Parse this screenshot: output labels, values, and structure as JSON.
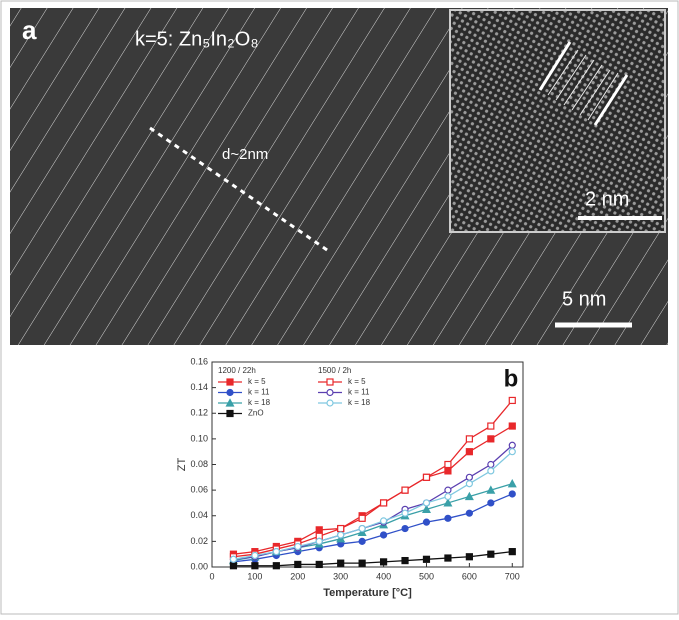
{
  "micrograph": {
    "panel_label": "a",
    "formula": "k=5: Zn₅In₂O₈",
    "spacing_label": "d~2nm",
    "inset_scale": "2 nm",
    "main_scale": "5 nm"
  },
  "chart_data": {
    "type": "line",
    "panel_label": "b",
    "x_label": "Temperature [°C]",
    "y_label": "ZT",
    "legend_titles": [
      "1200 / 22h",
      "1500 / 2h"
    ],
    "x": [
      50,
      100,
      150,
      200,
      250,
      300,
      350,
      400,
      450,
      500,
      550,
      600,
      650,
      700
    ],
    "series": [
      {
        "name": "k = 5",
        "color": "#e8282b",
        "marker": "square",
        "filled": true,
        "values": [
          0.01,
          0.012,
          0.016,
          0.02,
          0.029,
          0.03,
          0.04,
          0.05,
          0.06,
          0.07,
          0.075,
          0.09,
          0.1,
          0.11
        ]
      },
      {
        "name": "k = 11",
        "color": "#3050c8",
        "marker": "circle",
        "filled": true,
        "values": [
          0.004,
          0.006,
          0.009,
          0.012,
          0.015,
          0.018,
          0.02,
          0.025,
          0.03,
          0.035,
          0.038,
          0.042,
          0.05,
          0.057
        ]
      },
      {
        "name": "k = 18",
        "color": "#3aa0a8",
        "marker": "triangle",
        "filled": true,
        "values": [
          0.005,
          0.008,
          0.012,
          0.015,
          0.018,
          0.022,
          0.027,
          0.033,
          0.04,
          0.045,
          0.05,
          0.055,
          0.06,
          0.065
        ]
      },
      {
        "name": "ZnO",
        "color": "#111111",
        "marker": "square",
        "filled": true,
        "values": [
          0.001,
          0.001,
          0.001,
          0.002,
          0.002,
          0.003,
          0.003,
          0.004,
          0.005,
          0.006,
          0.007,
          0.008,
          0.01,
          0.012
        ]
      },
      {
        "name": "k = 5",
        "color": "#e8282b",
        "marker": "square",
        "filled": false,
        "values": [
          0.008,
          0.01,
          0.014,
          0.018,
          0.024,
          0.03,
          0.038,
          0.05,
          0.06,
          0.07,
          0.08,
          0.1,
          0.11,
          0.13
        ]
      },
      {
        "name": "k = 11",
        "color": "#5a3fb0",
        "marker": "circle",
        "filled": false,
        "values": [
          0.006,
          0.008,
          0.012,
          0.015,
          0.02,
          0.025,
          0.03,
          0.035,
          0.045,
          0.05,
          0.06,
          0.07,
          0.08,
          0.095
        ]
      },
      {
        "name": "k = 18",
        "color": "#7fc8e0",
        "marker": "circle",
        "filled": false,
        "values": [
          0.006,
          0.009,
          0.012,
          0.016,
          0.02,
          0.025,
          0.03,
          0.036,
          0.042,
          0.05,
          0.055,
          0.065,
          0.075,
          0.09
        ]
      }
    ],
    "xlim": [
      0,
      725
    ],
    "xticks": [
      0,
      100,
      200,
      300,
      400,
      500,
      600,
      700
    ],
    "ylim": [
      0,
      0.16
    ],
    "yticks": [
      {
        "value": 0,
        "label": "0.00"
      },
      {
        "value": 0.02,
        "label": "0.02"
      },
      {
        "value": 0.04,
        "label": "0.04"
      },
      {
        "value": 0.06,
        "label": "0.06"
      },
      {
        "value": 0.08,
        "label": "0.08"
      },
      {
        "value": 0.1,
        "label": "0.10"
      },
      {
        "value": 0.12,
        "label": "0.12"
      },
      {
        "value": 0.14,
        "label": "0.14"
      },
      {
        "value": 0.16,
        "label": "0.16"
      }
    ]
  }
}
